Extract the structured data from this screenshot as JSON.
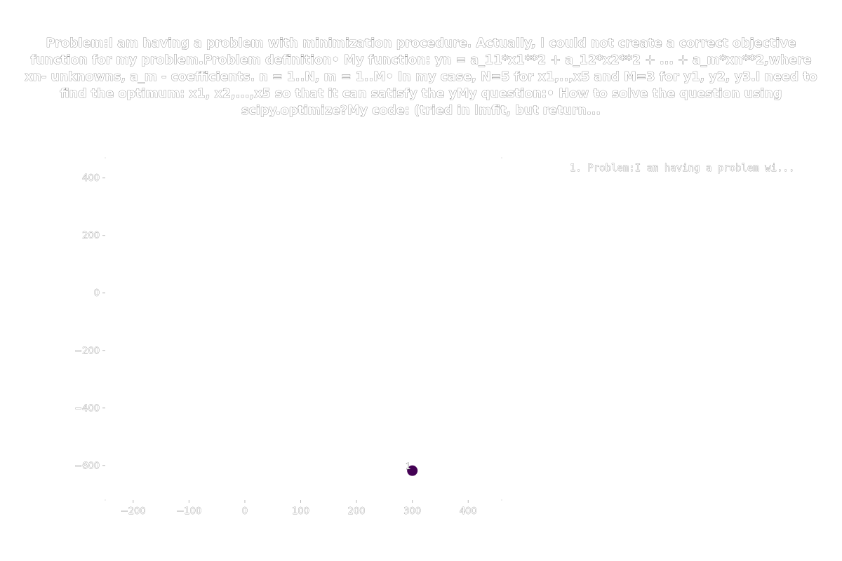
{
  "chart_data": {
    "type": "scatter",
    "title": "Problem:I am having a problem with minimization procedure. Actually, I could not create a correct objective function for my problem.Problem definition• My function: yn = a_11*x1**2 + a_12*x2**2 + ... + a_m*xn**2,where xn- unknowns, a_m - coefficients. n = 1..N, m = 1..M• In my case, N=5 for x1,..,x5 and M=3 for y1, y2, y3.I need to find the optimum: x1, x2,...,x5 so that it can satisfy the yMy question:• How to solve the question using scipy.optimize?My code:   (tried in lmfit, but return...",
    "xlabel": "",
    "ylabel": "",
    "xlim": [
      -250,
      460
    ],
    "ylim": [
      -720,
      470
    ],
    "x_ticks": [
      -200,
      -100,
      0,
      100,
      200,
      300,
      400
    ],
    "y_ticks": [
      400,
      200,
      0,
      -200,
      -400,
      -600
    ],
    "tick_labels": {
      "x": [
        "−200",
        "−100",
        "0",
        "100",
        "200",
        "300",
        "400"
      ],
      "y": [
        "400",
        "200",
        "0",
        "−200",
        "−400",
        "−600"
      ]
    },
    "grid": false,
    "legend_position": "top-right",
    "legend_entries": [
      "1. Problem:I am having a problem wi..."
    ],
    "points": [
      {
        "x": 300,
        "y": -618,
        "label": "1"
      }
    ],
    "point_color": "#440154",
    "tick_color": "#bbbbbb"
  }
}
